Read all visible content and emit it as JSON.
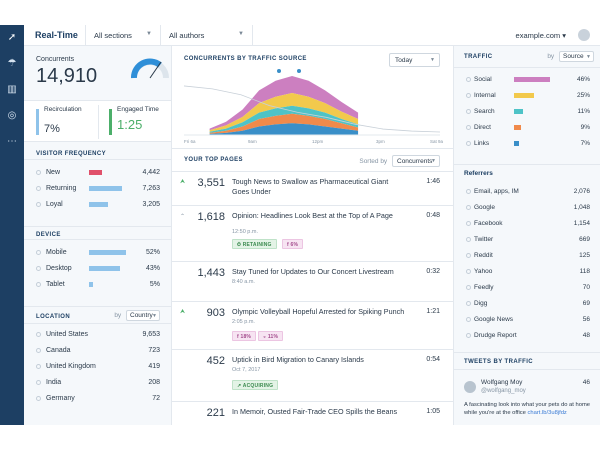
{
  "header": {
    "title": "Real-Time",
    "sections_dropdown": "All sections",
    "authors_dropdown": "All authors",
    "site": "example.com"
  },
  "left": {
    "concurrents_label": "Concurrents",
    "concurrents_value": "14,910",
    "recirculation_label": "Recirculation",
    "recirculation_value": "7%",
    "engaged_label": "Engaged Time",
    "engaged_value": "1:25",
    "visitor_frequency_title": "VISITOR FREQUENCY",
    "visitor_frequency": [
      {
        "name": "New",
        "value": "4,442",
        "share": 0.36,
        "color": "#e0506a"
      },
      {
        "name": "Returning",
        "value": "7,263",
        "share": 0.58,
        "color": "#8fc3ea"
      },
      {
        "name": "Loyal",
        "value": "3,205",
        "share": 0.26,
        "color": "#8fc3ea"
      }
    ],
    "device_title": "DEVICE",
    "device": [
      {
        "name": "Mobile",
        "value": "52%",
        "share": 0.52
      },
      {
        "name": "Desktop",
        "value": "43%",
        "share": 0.43
      },
      {
        "name": "Tablet",
        "value": "5%",
        "share": 0.05
      }
    ],
    "location_title": "LOCATION",
    "location_by": "by",
    "location_select": "Country",
    "location": [
      {
        "name": "United States",
        "value": "9,653"
      },
      {
        "name": "Canada",
        "value": "723"
      },
      {
        "name": "United Kingdom",
        "value": "419"
      },
      {
        "name": "India",
        "value": "208"
      },
      {
        "name": "Germany",
        "value": "72"
      }
    ]
  },
  "middle": {
    "chart_title": "CONCURRENTS BY TRAFFIC SOURCE",
    "range_select": "Today",
    "pages_title": "YOUR TOP PAGES",
    "sorted_by_label": "Sorted by",
    "sorted_by_select": "Concurrents",
    "pages": [
      {
        "count": "3,551",
        "headline": "Tough News to Swallow as Pharmaceutical Giant Goes Under",
        "time": "1:46",
        "trend": "up"
      },
      {
        "count": "1,618",
        "headline": "Opinion: Headlines Look Best at the Top of A Page",
        "time": "0:48",
        "trend": "up-small",
        "stamp": "12:50 p.m.",
        "tags": [
          "RETAINING",
          "6%"
        ]
      },
      {
        "count": "1,443",
        "headline": "Stay Tuned for Updates to Our Concert Livestream",
        "time": "0:32",
        "stamp": "8:40 a.m."
      },
      {
        "count": "903",
        "headline": "Olympic Volleyball Hopeful Arrested for Spiking Punch",
        "time": "1:21",
        "trend": "up",
        "stamp": "2:05 p.m.",
        "tags": [
          "18%",
          "11%"
        ]
      },
      {
        "count": "452",
        "headline": "Uptick in Bird Migration to Canary Islands",
        "time": "0:54",
        "stamp": "Oct 7, 2017",
        "tags": [
          "ACQUIRING"
        ]
      },
      {
        "count": "221",
        "headline": "In Memoir, Ousted Fair-Trade CEO Spills the Beans",
        "time": "1:05"
      }
    ]
  },
  "right": {
    "traffic_title": "TRAFFIC",
    "traffic_by": "by",
    "traffic_select": "Source",
    "traffic": [
      {
        "name": "Social",
        "value": "46%",
        "share": 0.46,
        "color": "#cc7fc0"
      },
      {
        "name": "Internal",
        "value": "25%",
        "share": 0.25,
        "color": "#f2c94c"
      },
      {
        "name": "Search",
        "value": "11%",
        "share": 0.11,
        "color": "#4ec3c7"
      },
      {
        "name": "Direct",
        "value": "9%",
        "share": 0.09,
        "color": "#f08a4b"
      },
      {
        "name": "Links",
        "value": "7%",
        "share": 0.07,
        "color": "#3a8fc8"
      }
    ],
    "referrers_title": "Referrers",
    "referrers": [
      {
        "name": "Email, apps, IM",
        "value": "2,076"
      },
      {
        "name": "Google",
        "value": "1,048"
      },
      {
        "name": "Facebook",
        "value": "1,154"
      },
      {
        "name": "Twitter",
        "value": "669"
      },
      {
        "name": "Reddit",
        "value": "125"
      },
      {
        "name": "Yahoo",
        "value": "118"
      },
      {
        "name": "Feedly",
        "value": "70"
      },
      {
        "name": "Digg",
        "value": "69"
      },
      {
        "name": "Google News",
        "value": "56"
      },
      {
        "name": "Drudge Report",
        "value": "48"
      }
    ],
    "tweets_title": "TWEETS BY TRAFFIC",
    "tweet": {
      "name": "Wolfgang Moy",
      "handle": "@wolfgang_moy",
      "count": "46",
      "text": "A fascinating look into what your pets do at home while you're at the office ",
      "link": "chart.lb/3u8jfdz"
    }
  },
  "chart_data": {
    "type": "area",
    "title": "CONCURRENTS BY TRAFFIC SOURCE",
    "x_labels": [
      "Fri 6a",
      "9am",
      "12pm",
      "3pm",
      "Sat 9a"
    ],
    "series": [
      {
        "color": "#3a8fc8",
        "values": [
          2,
          4,
          8,
          16,
          20,
          22,
          20,
          16,
          12,
          8
        ]
      },
      {
        "color": "#f08a4b",
        "values": [
          2,
          4,
          8,
          14,
          16,
          18,
          16,
          14,
          10,
          6
        ]
      },
      {
        "color": "#4ec3c7",
        "values": [
          2,
          4,
          8,
          12,
          14,
          15,
          14,
          12,
          8,
          6
        ]
      },
      {
        "color": "#f2c94c",
        "values": [
          3,
          6,
          10,
          18,
          22,
          24,
          22,
          18,
          14,
          10
        ]
      },
      {
        "color": "#cc7fc0",
        "values": [
          3,
          7,
          14,
          24,
          30,
          32,
          30,
          24,
          18,
          12
        ]
      }
    ],
    "comparison_line": [
      4,
      10,
      22,
      44,
      58,
      68,
      82,
      92,
      96,
      98
    ]
  }
}
